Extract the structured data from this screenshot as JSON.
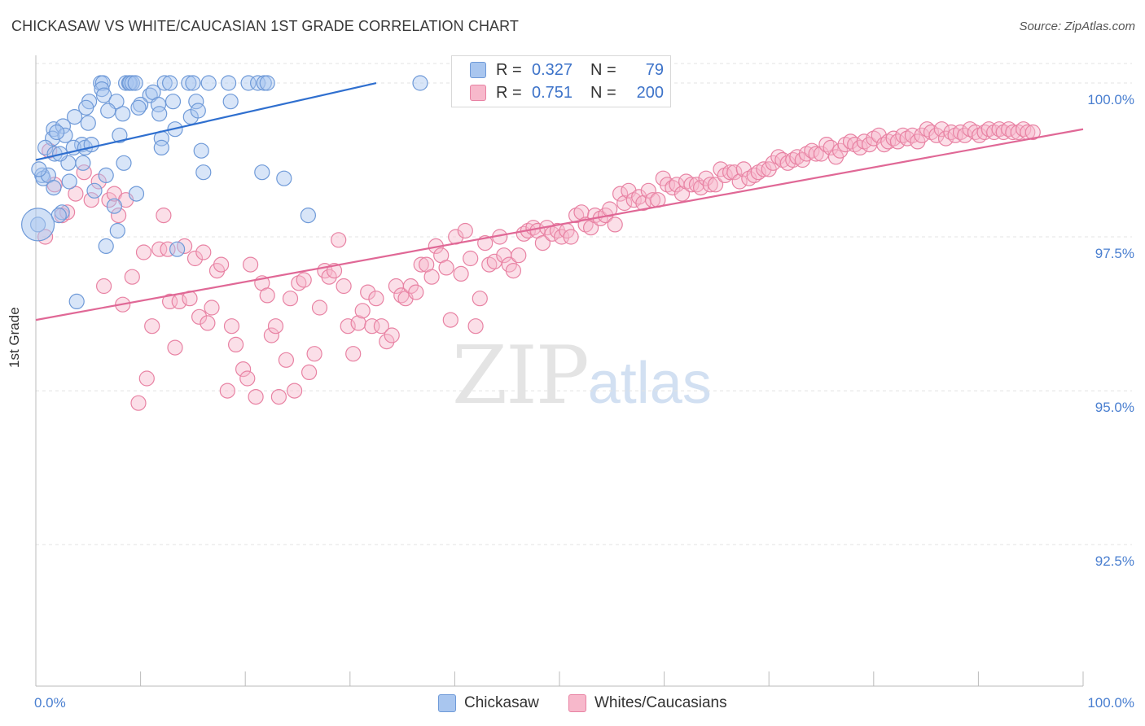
{
  "header": {
    "title": "CHICKASAW VS WHITE/CAUCASIAN 1ST GRADE CORRELATION CHART",
    "source": "Source: ZipAtlas.com"
  },
  "watermark": {
    "zip": "ZIP",
    "atlas": "atlas"
  },
  "legend": {
    "rows": [
      {
        "r_label": "R =",
        "r_value": "0.327",
        "n_label": "N =",
        "n_value": "79",
        "color": "#a9c6ef",
        "border": "#6f9ad8"
      },
      {
        "r_label": "R =",
        "r_value": "0.751",
        "n_label": "N =",
        "n_value": "200",
        "color": "#f7b8cb",
        "border": "#e882a3"
      }
    ]
  },
  "bottom_legend": [
    {
      "label": "Chickasaw",
      "color": "#a9c6ef",
      "border": "#6f9ad8"
    },
    {
      "label": "Whites/Caucasians",
      "color": "#f7b8cb",
      "border": "#e882a3"
    }
  ],
  "chart_data": {
    "type": "scatter",
    "title": "CHICKASAW VS WHITE/CAUCASIAN 1ST GRADE CORRELATION CHART",
    "ylabel": "1st Grade",
    "xlabel": "",
    "xlim": [
      0,
      100
    ],
    "ylim": [
      90.2,
      100.45
    ],
    "x_tick_labels": [
      "0.0%",
      "100.0%"
    ],
    "y_ticks": [
      92.5,
      95.0,
      97.5,
      100.0
    ],
    "y_tick_labels": [
      "92.5%",
      "95.0%",
      "97.5%",
      "100.0%"
    ],
    "grid": "horizontal dashed",
    "series": [
      {
        "name": "Chickasaw",
        "color": "#6f9ad8",
        "fill": "#a9c6ef",
        "trend": {
          "x": [
            0,
            32.5
          ],
          "y": [
            98.75,
            100.0
          ]
        },
        "points": [
          [
            6.2,
            100
          ],
          [
            6.4,
            100
          ],
          [
            8.6,
            100
          ],
          [
            8.9,
            100
          ],
          [
            9.0,
            100
          ],
          [
            9.2,
            100
          ],
          [
            9.5,
            100
          ],
          [
            12.3,
            100
          ],
          [
            12.8,
            100
          ],
          [
            14.6,
            100
          ],
          [
            15.0,
            100
          ],
          [
            16.5,
            100
          ],
          [
            18.4,
            100
          ],
          [
            20.3,
            100
          ],
          [
            21.2,
            100
          ],
          [
            21.8,
            100
          ],
          [
            22.1,
            100
          ],
          [
            36.7,
            100
          ],
          [
            6.3,
            99.9
          ],
          [
            6.5,
            99.8
          ],
          [
            10.9,
            99.8
          ],
          [
            11.2,
            99.85
          ],
          [
            5.1,
            99.7
          ],
          [
            7.7,
            99.7
          ],
          [
            13.1,
            99.7
          ],
          [
            15.3,
            99.7
          ],
          [
            18.6,
            99.7
          ],
          [
            4.8,
            99.6
          ],
          [
            10.0,
            99.65
          ],
          [
            11.7,
            99.65
          ],
          [
            6.9,
            99.55
          ],
          [
            8.3,
            99.5
          ],
          [
            11.8,
            99.5
          ],
          [
            14.8,
            99.45
          ],
          [
            3.7,
            99.45
          ],
          [
            5.0,
            99.35
          ],
          [
            1.7,
            99.25
          ],
          [
            2.6,
            99.3
          ],
          [
            13.3,
            99.25
          ],
          [
            1.6,
            99.1
          ],
          [
            2.8,
            99.15
          ],
          [
            8.0,
            99.15
          ],
          [
            12.0,
            99.1
          ],
          [
            4.4,
            99.0
          ],
          [
            0.9,
            98.95
          ],
          [
            3.6,
            98.95
          ],
          [
            4.7,
            98.95
          ],
          [
            5.3,
            99.0
          ],
          [
            1.8,
            98.85
          ],
          [
            15.8,
            98.9
          ],
          [
            3.1,
            98.7
          ],
          [
            8.4,
            98.7
          ],
          [
            16.0,
            98.55
          ],
          [
            21.6,
            98.55
          ],
          [
            0.6,
            98.5
          ],
          [
            0.7,
            98.45
          ],
          [
            1.2,
            98.5
          ],
          [
            6.7,
            98.5
          ],
          [
            23.7,
            98.45
          ],
          [
            3.2,
            98.4
          ],
          [
            1.7,
            98.3
          ],
          [
            5.6,
            98.25
          ],
          [
            9.6,
            98.2
          ],
          [
            7.5,
            98.0
          ],
          [
            2.5,
            97.9
          ],
          [
            0.2,
            97.7
          ],
          [
            7.8,
            97.6
          ],
          [
            26.0,
            97.85
          ],
          [
            6.7,
            97.35
          ],
          [
            13.5,
            97.3
          ],
          [
            3.9,
            96.45
          ],
          [
            2.0,
            99.2
          ],
          [
            9.8,
            99.6
          ],
          [
            15.5,
            99.55
          ],
          [
            2.3,
            98.85
          ],
          [
            12.0,
            98.95
          ],
          [
            4.5,
            98.7
          ],
          [
            0.3,
            98.6
          ],
          [
            2.2,
            97.85
          ]
        ]
      },
      {
        "name": "Whites/Caucasians",
        "color": "#e882a3",
        "fill": "#f7b8cb",
        "trend": {
          "x": [
            0,
            100
          ],
          "y": [
            96.15,
            99.25
          ]
        },
        "points": [
          [
            0.9,
            97.5
          ],
          [
            1.3,
            98.9
          ],
          [
            1.8,
            98.35
          ],
          [
            2.5,
            97.85
          ],
          [
            3.0,
            97.9
          ],
          [
            3.8,
            98.2
          ],
          [
            4.6,
            98.55
          ],
          [
            5.3,
            98.1
          ],
          [
            6.0,
            98.4
          ],
          [
            6.5,
            96.7
          ],
          [
            7.0,
            98.1
          ],
          [
            7.5,
            98.2
          ],
          [
            7.9,
            97.85
          ],
          [
            8.3,
            96.4
          ],
          [
            8.6,
            98.1
          ],
          [
            9.2,
            96.85
          ],
          [
            9.8,
            94.8
          ],
          [
            10.3,
            97.25
          ],
          [
            10.6,
            95.2
          ],
          [
            11.1,
            96.05
          ],
          [
            11.8,
            97.3
          ],
          [
            12.2,
            97.85
          ],
          [
            12.6,
            97.3
          ],
          [
            12.8,
            96.45
          ],
          [
            13.3,
            95.7
          ],
          [
            13.7,
            96.45
          ],
          [
            14.2,
            97.35
          ],
          [
            14.7,
            96.5
          ],
          [
            15.2,
            97.15
          ],
          [
            15.6,
            96.2
          ],
          [
            16.0,
            97.25
          ],
          [
            16.4,
            96.1
          ],
          [
            16.8,
            96.35
          ],
          [
            17.3,
            96.95
          ],
          [
            17.7,
            97.05
          ],
          [
            18.3,
            95.0
          ],
          [
            18.7,
            96.05
          ],
          [
            19.1,
            95.75
          ],
          [
            19.8,
            95.35
          ],
          [
            20.2,
            95.2
          ],
          [
            20.5,
            97.05
          ],
          [
            21.0,
            94.9
          ],
          [
            21.6,
            96.75
          ],
          [
            22.1,
            96.55
          ],
          [
            22.5,
            95.9
          ],
          [
            22.9,
            96.05
          ],
          [
            23.2,
            94.9
          ],
          [
            23.9,
            95.5
          ],
          [
            24.3,
            96.5
          ],
          [
            24.7,
            95.0
          ],
          [
            25.1,
            96.75
          ],
          [
            25.6,
            96.8
          ],
          [
            26.1,
            95.3
          ],
          [
            26.6,
            95.6
          ],
          [
            27.1,
            96.35
          ],
          [
            27.6,
            96.95
          ],
          [
            28.0,
            96.85
          ],
          [
            28.5,
            96.95
          ],
          [
            28.9,
            97.45
          ],
          [
            29.4,
            96.7
          ],
          [
            29.8,
            96.05
          ],
          [
            30.3,
            95.6
          ],
          [
            30.8,
            96.1
          ],
          [
            31.2,
            96.3
          ],
          [
            31.7,
            96.6
          ],
          [
            32.1,
            96.05
          ],
          [
            32.5,
            96.5
          ],
          [
            33.0,
            96.05
          ],
          [
            33.5,
            95.8
          ],
          [
            34.0,
            95.9
          ],
          [
            34.4,
            96.7
          ],
          [
            34.9,
            96.55
          ],
          [
            35.3,
            96.5
          ],
          [
            35.8,
            96.7
          ],
          [
            36.3,
            96.6
          ],
          [
            36.8,
            97.05
          ],
          [
            37.3,
            97.05
          ],
          [
            37.8,
            96.85
          ],
          [
            38.2,
            97.35
          ],
          [
            38.7,
            97.2
          ],
          [
            39.2,
            97.0
          ],
          [
            39.6,
            96.15
          ],
          [
            40.1,
            97.5
          ],
          [
            40.6,
            96.9
          ],
          [
            41.0,
            97.6
          ],
          [
            41.5,
            97.15
          ],
          [
            42.0,
            96.05
          ],
          [
            42.4,
            96.5
          ],
          [
            42.9,
            97.4
          ],
          [
            43.3,
            97.05
          ],
          [
            43.8,
            97.1
          ],
          [
            44.3,
            97.5
          ],
          [
            44.7,
            97.2
          ],
          [
            45.2,
            97.05
          ],
          [
            45.6,
            96.95
          ],
          [
            46.1,
            97.2
          ],
          [
            46.6,
            97.55
          ],
          [
            47.0,
            97.6
          ],
          [
            47.5,
            97.65
          ],
          [
            47.9,
            97.6
          ],
          [
            48.4,
            97.4
          ],
          [
            48.8,
            97.65
          ],
          [
            49.3,
            97.55
          ],
          [
            49.8,
            97.6
          ],
          [
            50.2,
            97.5
          ],
          [
            50.7,
            97.6
          ],
          [
            51.1,
            97.5
          ],
          [
            51.6,
            97.85
          ],
          [
            52.1,
            97.9
          ],
          [
            52.5,
            97.7
          ],
          [
            53.0,
            97.65
          ],
          [
            53.4,
            97.85
          ],
          [
            53.9,
            97.8
          ],
          [
            54.4,
            97.85
          ],
          [
            54.8,
            97.95
          ],
          [
            55.3,
            97.7
          ],
          [
            55.8,
            98.2
          ],
          [
            56.2,
            98.05
          ],
          [
            56.6,
            98.25
          ],
          [
            57.1,
            98.1
          ],
          [
            57.6,
            98.15
          ],
          [
            58.0,
            98.05
          ],
          [
            58.5,
            98.25
          ],
          [
            58.9,
            98.1
          ],
          [
            59.4,
            98.1
          ],
          [
            59.9,
            98.45
          ],
          [
            60.3,
            98.35
          ],
          [
            60.8,
            98.3
          ],
          [
            61.2,
            98.35
          ],
          [
            61.7,
            98.2
          ],
          [
            62.1,
            98.4
          ],
          [
            62.6,
            98.35
          ],
          [
            63.1,
            98.35
          ],
          [
            63.5,
            98.3
          ],
          [
            64.0,
            98.45
          ],
          [
            64.4,
            98.35
          ],
          [
            64.9,
            98.35
          ],
          [
            65.4,
            98.6
          ],
          [
            65.8,
            98.5
          ],
          [
            66.3,
            98.55
          ],
          [
            66.7,
            98.55
          ],
          [
            67.2,
            98.4
          ],
          [
            67.6,
            98.6
          ],
          [
            68.1,
            98.45
          ],
          [
            68.6,
            98.5
          ],
          [
            69.0,
            98.55
          ],
          [
            69.5,
            98.6
          ],
          [
            70.0,
            98.6
          ],
          [
            70.4,
            98.7
          ],
          [
            70.9,
            98.8
          ],
          [
            71.3,
            98.75
          ],
          [
            71.8,
            98.7
          ],
          [
            72.3,
            98.75
          ],
          [
            72.7,
            98.8
          ],
          [
            73.2,
            98.75
          ],
          [
            73.6,
            98.85
          ],
          [
            74.1,
            98.9
          ],
          [
            74.5,
            98.85
          ],
          [
            75.0,
            98.85
          ],
          [
            75.5,
            99.0
          ],
          [
            75.9,
            98.95
          ],
          [
            76.4,
            98.8
          ],
          [
            76.8,
            98.9
          ],
          [
            77.3,
            99.0
          ],
          [
            77.8,
            99.05
          ],
          [
            78.2,
            99.0
          ],
          [
            78.7,
            98.95
          ],
          [
            79.1,
            99.05
          ],
          [
            79.6,
            99.0
          ],
          [
            80.0,
            99.1
          ],
          [
            80.5,
            99.15
          ],
          [
            81.0,
            99.0
          ],
          [
            81.4,
            99.05
          ],
          [
            81.9,
            99.1
          ],
          [
            82.3,
            99.05
          ],
          [
            82.8,
            99.15
          ],
          [
            83.2,
            99.1
          ],
          [
            83.7,
            99.15
          ],
          [
            84.2,
            99.05
          ],
          [
            84.6,
            99.15
          ],
          [
            85.1,
            99.25
          ],
          [
            85.5,
            99.2
          ],
          [
            86.0,
            99.15
          ],
          [
            86.5,
            99.25
          ],
          [
            86.9,
            99.1
          ],
          [
            87.4,
            99.2
          ],
          [
            87.8,
            99.15
          ],
          [
            88.3,
            99.2
          ],
          [
            88.7,
            99.15
          ],
          [
            89.2,
            99.25
          ],
          [
            89.7,
            99.2
          ],
          [
            90.1,
            99.15
          ],
          [
            90.6,
            99.2
          ],
          [
            91.0,
            99.25
          ],
          [
            91.5,
            99.2
          ],
          [
            92.0,
            99.25
          ],
          [
            92.4,
            99.2
          ],
          [
            92.9,
            99.25
          ],
          [
            93.3,
            99.2
          ],
          [
            93.8,
            99.2
          ],
          [
            94.3,
            99.25
          ],
          [
            94.7,
            99.2
          ],
          [
            95.2,
            99.2
          ]
        ]
      }
    ]
  }
}
